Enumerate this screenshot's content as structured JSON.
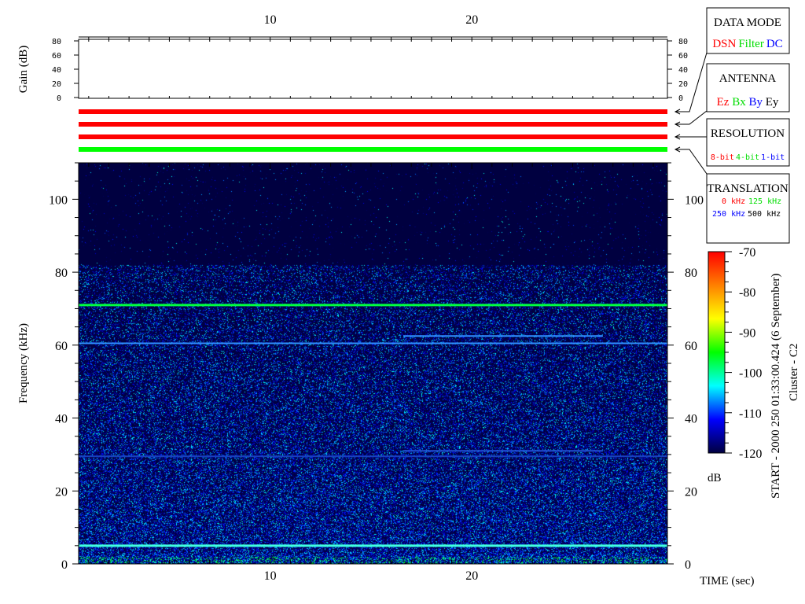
{
  "chart_data": {
    "type": "heatmap",
    "title": "",
    "xlabel": "TIME (sec)",
    "ylabel": "Frequency (kHz)",
    "xlim": [
      0.5,
      29.7
    ],
    "ylim": [
      0,
      110
    ],
    "x_ticks": [
      10,
      20
    ],
    "y_ticks": [
      0,
      20,
      40,
      60,
      80,
      100
    ],
    "gain_panel": {
      "ylabel": "Gain (dB)",
      "ylim": [
        0,
        80
      ],
      "y_ticks": [
        0,
        20,
        40,
        60,
        80
      ]
    },
    "colorbar": {
      "label": "dB",
      "range": [
        -120,
        -70
      ],
      "ticks": [
        -70,
        -80,
        -90,
        -100,
        -110,
        -120
      ],
      "colormap": [
        "#000040",
        "#0000ff",
        "#00ffff",
        "#00ff00",
        "#ffff00",
        "#ff8000",
        "#ff0000"
      ]
    },
    "background_level_db": -118,
    "noise_ceiling_khz": 82,
    "features": [
      {
        "freq_khz": 71,
        "t_start": 0.5,
        "t_end": 29.7,
        "color": "#00ff40"
      },
      {
        "freq_khz": 5,
        "t_start": 0.5,
        "t_end": 29.7,
        "color": "#40ffe0"
      },
      {
        "freq_khz": 60.5,
        "t_start": 0.5,
        "t_end": 29.7,
        "color": "#3090ff"
      },
      {
        "freq_khz": 62.5,
        "t_start": 16.6,
        "t_end": 26.5,
        "color": "#3090ff"
      },
      {
        "freq_khz": 31,
        "t_start": 16.6,
        "t_end": 26.5,
        "color": "#2050d0"
      },
      {
        "freq_khz": 29.5,
        "t_start": 0.5,
        "t_end": 29.7,
        "color": "#1840c0"
      }
    ],
    "status_strips": [
      {
        "name": "DATA MODE",
        "value": "DSN",
        "color": "#ff0000"
      },
      {
        "name": "ANTENNA",
        "value": "Ez",
        "color": "#ff0000"
      },
      {
        "name": "RESOLUTION",
        "value": "8-bit",
        "color": "#ff0000"
      },
      {
        "name": "TRANSLATION",
        "value": "125 kHz",
        "color": "#00ff00"
      }
    ]
  },
  "legend": {
    "data_mode": {
      "title": "DATA MODE",
      "items": [
        {
          "t": "DSN",
          "c": "#ff0000"
        },
        {
          "t": "Filter",
          "c": "#00dd00"
        },
        {
          "t": "DC",
          "c": "#0000ff"
        }
      ]
    },
    "antenna": {
      "title": "ANTENNA",
      "items": [
        {
          "t": "Ez",
          "c": "#ff0000"
        },
        {
          "t": "Bx",
          "c": "#00dd00"
        },
        {
          "t": "By",
          "c": "#0000ff"
        },
        {
          "t": "Ey",
          "c": "#000000"
        }
      ]
    },
    "resolution": {
      "title": "RESOLUTION",
      "items": [
        {
          "t": "8-bit",
          "c": "#ff0000"
        },
        {
          "t": "4-bit",
          "c": "#00dd00"
        },
        {
          "t": "1-bit",
          "c": "#0000ff"
        }
      ]
    },
    "translation": {
      "title": "TRANSLATION",
      "items": [
        {
          "t": "0 kHz",
          "c": "#ff0000"
        },
        {
          "t": "125 kHz",
          "c": "#00dd00"
        },
        {
          "t": "250 kHz",
          "c": "#0000ff"
        },
        {
          "t": "500 kHz",
          "c": "#000000"
        }
      ]
    }
  },
  "side": {
    "start": "START - 2000 250 01:33:00.424 (6 September)",
    "spacecraft": "Cluster - C2"
  }
}
